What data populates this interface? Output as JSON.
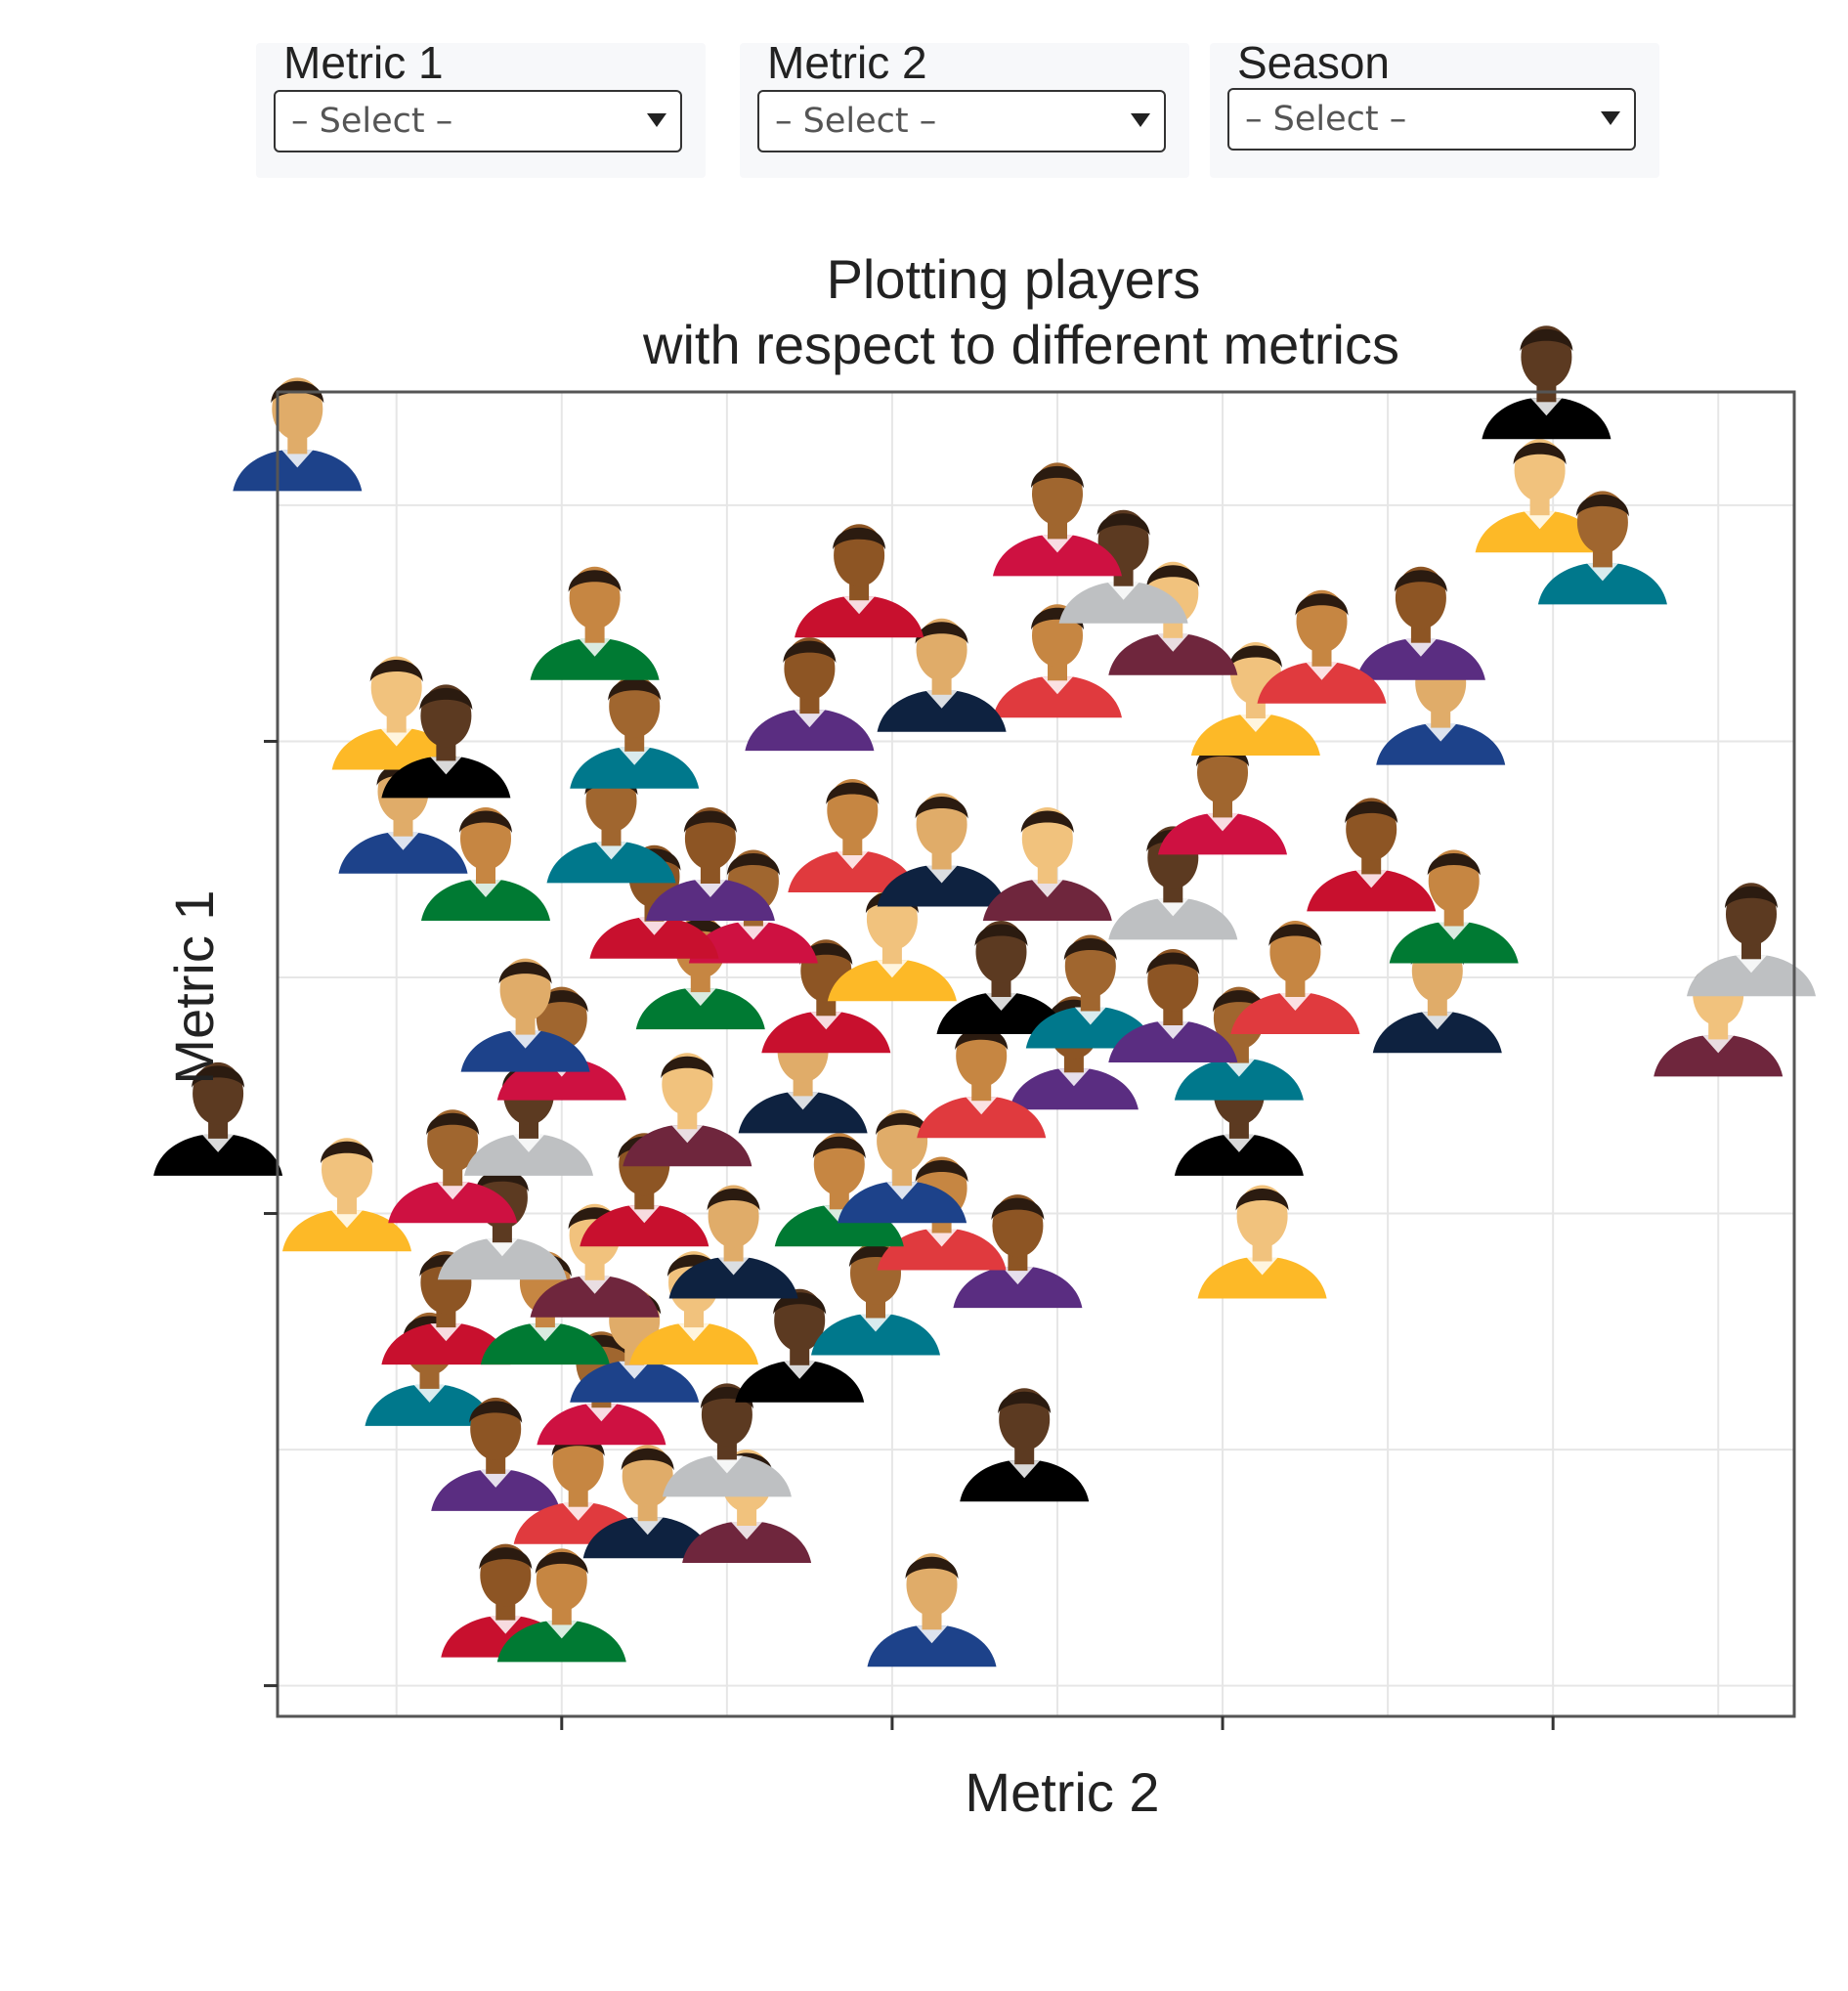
{
  "controls": {
    "metric1": {
      "label": "Metric 1",
      "value": "– Select –"
    },
    "metric2": {
      "label": "Metric 2",
      "value": "– Select –"
    },
    "season": {
      "label": "Season",
      "value": "– Select –"
    }
  },
  "colors": {
    "grid": "#e6e6e6",
    "axis": "#555555",
    "tick": "#333333",
    "marker_palette": [
      "#c8102e",
      "#007a33",
      "#1d428a",
      "#fdb927",
      "#000000",
      "#00788c",
      "#5a2d81",
      "#e03a3e",
      "#0e2240",
      "#6f263d",
      "#bec0c2",
      "#ce1141"
    ]
  },
  "chart_data": {
    "type": "scatter",
    "title": [
      "Plotting players",
      "with respect to different metrics"
    ],
    "xlabel": "Metric 2",
    "ylabel": "Metric 1",
    "xlim": [
      -0.86,
      3.73
    ],
    "ylim": [
      -0.065,
      2.74
    ],
    "x_ticks": [
      0,
      1,
      2,
      3
    ],
    "y_ticks": [
      0,
      1,
      2
    ],
    "grid": true,
    "legend": "none",
    "marker": "player-headshot",
    "points": [
      {
        "x": -0.17,
        "y": 0.06
      },
      {
        "x": 0.0,
        "y": 0.05
      },
      {
        "x": 1.12,
        "y": 0.04
      },
      {
        "x": -0.65,
        "y": 0.92
      },
      {
        "x": 1.4,
        "y": 0.39
      },
      {
        "x": -0.4,
        "y": 0.55
      },
      {
        "x": -0.2,
        "y": 0.37
      },
      {
        "x": 0.05,
        "y": 0.3
      },
      {
        "x": 0.26,
        "y": 0.27
      },
      {
        "x": 0.56,
        "y": 0.26
      },
      {
        "x": 0.5,
        "y": 0.4
      },
      {
        "x": 0.12,
        "y": 0.51
      },
      {
        "x": -0.35,
        "y": 0.68
      },
      {
        "x": -0.05,
        "y": 0.68
      },
      {
        "x": 0.22,
        "y": 0.6
      },
      {
        "x": 0.4,
        "y": 0.68
      },
      {
        "x": 0.72,
        "y": 0.6
      },
      {
        "x": 0.95,
        "y": 0.7
      },
      {
        "x": 1.38,
        "y": 0.8
      },
      {
        "x": 1.15,
        "y": 0.88
      },
      {
        "x": 0.52,
        "y": 0.82
      },
      {
        "x": 0.1,
        "y": 0.78
      },
      {
        "x": -0.18,
        "y": 0.86
      },
      {
        "x": -0.33,
        "y": 0.98
      },
      {
        "x": 0.25,
        "y": 0.93
      },
      {
        "x": 0.84,
        "y": 0.93
      },
      {
        "x": 1.03,
        "y": 0.98
      },
      {
        "x": 2.12,
        "y": 0.82
      },
      {
        "x": 2.05,
        "y": 1.08
      },
      {
        "x": 2.05,
        "y": 1.24
      },
      {
        "x": 1.55,
        "y": 1.22
      },
      {
        "x": 1.27,
        "y": 1.16
      },
      {
        "x": 0.73,
        "y": 1.17
      },
      {
        "x": 0.38,
        "y": 1.1
      },
      {
        "x": -0.1,
        "y": 1.08
      },
      {
        "x": 0.0,
        "y": 1.24
      },
      {
        "x": 0.8,
        "y": 1.34
      },
      {
        "x": 0.42,
        "y": 1.39
      },
      {
        "x": -0.11,
        "y": 1.3
      },
      {
        "x": 1.0,
        "y": 1.45
      },
      {
        "x": 1.33,
        "y": 1.38
      },
      {
        "x": 1.6,
        "y": 1.35
      },
      {
        "x": 1.85,
        "y": 1.32
      },
      {
        "x": 2.22,
        "y": 1.38
      },
      {
        "x": 2.65,
        "y": 1.34
      },
      {
        "x": 3.5,
        "y": 1.29
      },
      {
        "x": 3.6,
        "y": 1.46
      },
      {
        "x": 0.58,
        "y": 1.53
      },
      {
        "x": 0.28,
        "y": 1.54
      },
      {
        "x": -0.23,
        "y": 1.62
      },
      {
        "x": -0.48,
        "y": 1.72
      },
      {
        "x": -0.5,
        "y": 1.94
      },
      {
        "x": -0.35,
        "y": 1.88
      },
      {
        "x": 0.15,
        "y": 1.7
      },
      {
        "x": 0.45,
        "y": 1.62
      },
      {
        "x": 0.88,
        "y": 1.68
      },
      {
        "x": 1.15,
        "y": 1.65
      },
      {
        "x": 1.47,
        "y": 1.62
      },
      {
        "x": 1.85,
        "y": 1.58
      },
      {
        "x": 2.0,
        "y": 1.76
      },
      {
        "x": 2.45,
        "y": 1.64
      },
      {
        "x": 2.7,
        "y": 1.53
      },
      {
        "x": 2.66,
        "y": 1.95
      },
      {
        "x": 2.1,
        "y": 1.97
      },
      {
        "x": -1.04,
        "y": 1.08
      },
      {
        "x": 0.22,
        "y": 1.9
      },
      {
        "x": 0.75,
        "y": 1.98
      },
      {
        "x": 1.5,
        "y": 2.05
      },
      {
        "x": 1.15,
        "y": 2.02
      },
      {
        "x": 1.85,
        "y": 2.14
      },
      {
        "x": 1.7,
        "y": 2.25
      },
      {
        "x": 1.5,
        "y": 2.35
      },
      {
        "x": 0.9,
        "y": 2.22
      },
      {
        "x": 0.1,
        "y": 2.13
      },
      {
        "x": -0.8,
        "y": 2.53
      },
      {
        "x": 2.96,
        "y": 2.4
      },
      {
        "x": 2.98,
        "y": 2.64
      },
      {
        "x": 3.15,
        "y": 2.29
      },
      {
        "x": 2.6,
        "y": 2.13
      },
      {
        "x": 2.3,
        "y": 2.08
      }
    ]
  }
}
